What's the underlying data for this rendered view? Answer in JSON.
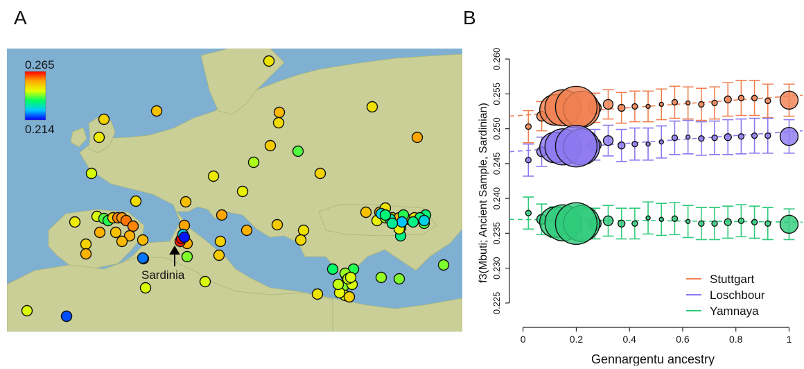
{
  "panels": {
    "a": {
      "letter": "A"
    },
    "b": {
      "letter": "B"
    }
  },
  "colors": {
    "sea": "#7fb0d2",
    "land": "#c9cf96",
    "stuttgart": "#f08050",
    "loschbour": "#8c78f0",
    "yamnaya": "#2fca7a",
    "arrow": "#000000"
  },
  "map": {
    "colorbar": {
      "max_label": "0.265",
      "min_label": "0.214",
      "max_value": 0.265,
      "min_value": 0.214
    },
    "annotation": "Sardinia",
    "points": [
      {
        "v": 0.248
      },
      {
        "v": 0.252
      },
      {
        "v": 0.25
      },
      {
        "v": 0.253
      },
      {
        "v": 0.249
      },
      {
        "v": 0.248
      },
      {
        "v": 0.255
      },
      {
        "v": 0.247
      },
      {
        "v": 0.251
      },
      {
        "v": 0.238
      },
      {
        "v": 0.242
      },
      {
        "v": 0.244
      },
      {
        "v": 0.247
      },
      {
        "v": 0.25
      },
      {
        "v": 0.246
      },
      {
        "v": 0.249
      },
      {
        "v": 0.252
      },
      {
        "v": 0.247
      },
      {
        "v": 0.244
      },
      {
        "v": 0.238
      },
      {
        "v": 0.236
      },
      {
        "v": 0.251
      },
      {
        "v": 0.257
      },
      {
        "v": 0.256
      },
      {
        "v": 0.258
      },
      {
        "v": 0.257
      },
      {
        "v": 0.254
      },
      {
        "v": 0.252
      },
      {
        "v": 0.254
      },
      {
        "v": 0.25
      },
      {
        "v": 0.253
      },
      {
        "v": 0.255
      },
      {
        "v": 0.254
      },
      {
        "v": 0.251
      },
      {
        "v": 0.255
      },
      {
        "v": 0.253
      },
      {
        "v": 0.254
      },
      {
        "v": 0.222
      },
      {
        "v": 0.254
      },
      {
        "v": 0.263
      },
      {
        "v": 0.265
      },
      {
        "v": 0.24
      },
      {
        "v": 0.25
      },
      {
        "v": 0.251
      },
      {
        "v": 0.248
      },
      {
        "v": 0.249
      },
      {
        "v": 0.252
      },
      {
        "v": 0.253
      },
      {
        "v": 0.248
      },
      {
        "v": 0.246
      },
      {
        "v": 0.242
      },
      {
        "v": 0.245
      },
      {
        "v": 0.253
      },
      {
        "v": 0.248
      },
      {
        "v": 0.248
      },
      {
        "v": 0.238
      },
      {
        "v": 0.234
      },
      {
        "v": 0.232
      },
      {
        "v": 0.234
      },
      {
        "v": 0.236
      },
      {
        "v": 0.237
      },
      {
        "v": 0.24
      },
      {
        "v": 0.244
      },
      {
        "v": 0.245
      },
      {
        "v": 0.24
      },
      {
        "v": 0.24
      },
      {
        "v": 0.244
      },
      {
        "v": 0.248
      },
      {
        "v": 0.244
      },
      {
        "v": 0.244
      },
      {
        "v": 0.244
      },
      {
        "v": 0.245
      },
      {
        "v": 0.25
      },
      {
        "v": 0.241
      },
      {
        "v": 0.245
      },
      {
        "v": 0.233
      },
      {
        "v": 0.236
      },
      {
        "v": 0.233
      },
      {
        "v": 0.226
      },
      {
        "v": 0.232
      },
      {
        "v": 0.224
      },
      {
        "v": 0.23
      },
      {
        "v": 0.231
      },
      {
        "v": 0.226
      },
      {
        "v": 0.233
      },
      {
        "v": 0.241
      },
      {
        "v": 0.243
      },
      {
        "v": 0.244
      },
      {
        "v": 0.218
      },
      {
        "v": 0.243
      },
      {
        "v": 0.22
      },
      {
        "v": 0.225
      },
      {
        "v": 0.215
      }
    ]
  },
  "chart_data": {
    "type": "scatter",
    "xlabel": "Gennargentu ancestry",
    "ylabel": "f3(Mbuti; Ancient Sample, Sardinian)",
    "xlim": [
      -0.02,
      1.03
    ],
    "ylim": [
      0.2225,
      0.2615
    ],
    "xticks": [
      0,
      0.2,
      0.4,
      0.6,
      0.8,
      1
    ],
    "xtick_labels": [
      "0",
      "0.2",
      "0.4",
      "0.6",
      "0.8",
      "1"
    ],
    "yticks": [
      0.225,
      0.23,
      0.235,
      0.24,
      0.245,
      0.25,
      0.255,
      0.26
    ],
    "ytick_labels": [
      "0.225",
      "0.230",
      "0.235",
      "0.240",
      "0.245",
      "0.250",
      "0.255",
      "0.260"
    ],
    "legend_position": "bottom-right",
    "grid": false,
    "x": [
      0.02,
      0.07,
      0.12,
      0.15,
      0.2,
      0.22,
      0.27,
      0.32,
      0.37,
      0.42,
      0.47,
      0.52,
      0.57,
      0.62,
      0.67,
      0.72,
      0.77,
      0.82,
      0.87,
      0.92,
      1.0
    ],
    "series": [
      {
        "name": "Stuttgart",
        "color": "#f08050",
        "y": [
          0.2503,
          0.2518,
          0.2527,
          0.253,
          0.2531,
          0.2528,
          0.253,
          0.2535,
          0.253,
          0.2532,
          0.2532,
          0.2535,
          0.2538,
          0.2537,
          0.2535,
          0.2537,
          0.2542,
          0.2544,
          0.2544,
          0.254,
          0.2541
        ],
        "err": [
          0.0023,
          0.0021,
          0.002,
          0.002,
          0.0021,
          0.0021,
          0.0021,
          0.0021,
          0.0022,
          0.0022,
          0.0022,
          0.0022,
          0.0023,
          0.0023,
          0.0023,
          0.0023,
          0.0024,
          0.0025,
          0.0025,
          0.0024,
          0.0023
        ],
        "size": [
          4,
          7,
          22,
          26,
          30,
          26,
          9,
          7,
          5,
          4,
          3,
          3,
          4,
          3,
          4,
          4,
          5,
          4,
          4,
          4,
          13
        ],
        "trend": [
          0.2518,
          0.2548
        ]
      },
      {
        "name": "Loschbour",
        "color": "#8c78f0",
        "y": [
          0.2455,
          0.2467,
          0.2473,
          0.2474,
          0.2475,
          0.2474,
          0.2477,
          0.2483,
          0.2476,
          0.2478,
          0.2478,
          0.2481,
          0.2487,
          0.2488,
          0.2486,
          0.2487,
          0.2488,
          0.2489,
          0.249,
          0.249,
          0.2489
        ],
        "err": [
          0.0023,
          0.0021,
          0.0021,
          0.0021,
          0.0022,
          0.0022,
          0.0022,
          0.0022,
          0.0023,
          0.0023,
          0.0023,
          0.0023,
          0.0024,
          0.0024,
          0.0024,
          0.0024,
          0.0025,
          0.0025,
          0.0025,
          0.0025,
          0.0024
        ],
        "size": [
          4,
          7,
          22,
          26,
          30,
          26,
          9,
          7,
          5,
          4,
          3,
          3,
          4,
          3,
          4,
          4,
          5,
          4,
          4,
          4,
          13
        ],
        "trend": [
          0.2467,
          0.2497
        ]
      },
      {
        "name": "Yamnaya",
        "color": "#2fca7a",
        "y": [
          0.2379,
          0.237,
          0.2366,
          0.2365,
          0.2364,
          0.2364,
          0.2364,
          0.2368,
          0.2364,
          0.2364,
          0.2372,
          0.237,
          0.2371,
          0.2367,
          0.2364,
          0.2364,
          0.2366,
          0.2368,
          0.2366,
          0.2364,
          0.2363
        ],
        "err": [
          0.0023,
          0.0022,
          0.0022,
          0.0022,
          0.0022,
          0.0022,
          0.0022,
          0.0022,
          0.0022,
          0.0022,
          0.0023,
          0.0023,
          0.0023,
          0.0023,
          0.0023,
          0.0023,
          0.0023,
          0.0023,
          0.0023,
          0.0023,
          0.0022
        ],
        "size": [
          4,
          7,
          22,
          26,
          30,
          26,
          9,
          7,
          5,
          4,
          3,
          3,
          4,
          3,
          4,
          4,
          5,
          4,
          4,
          4,
          13
        ],
        "trend": [
          0.237,
          0.2366
        ]
      }
    ]
  }
}
